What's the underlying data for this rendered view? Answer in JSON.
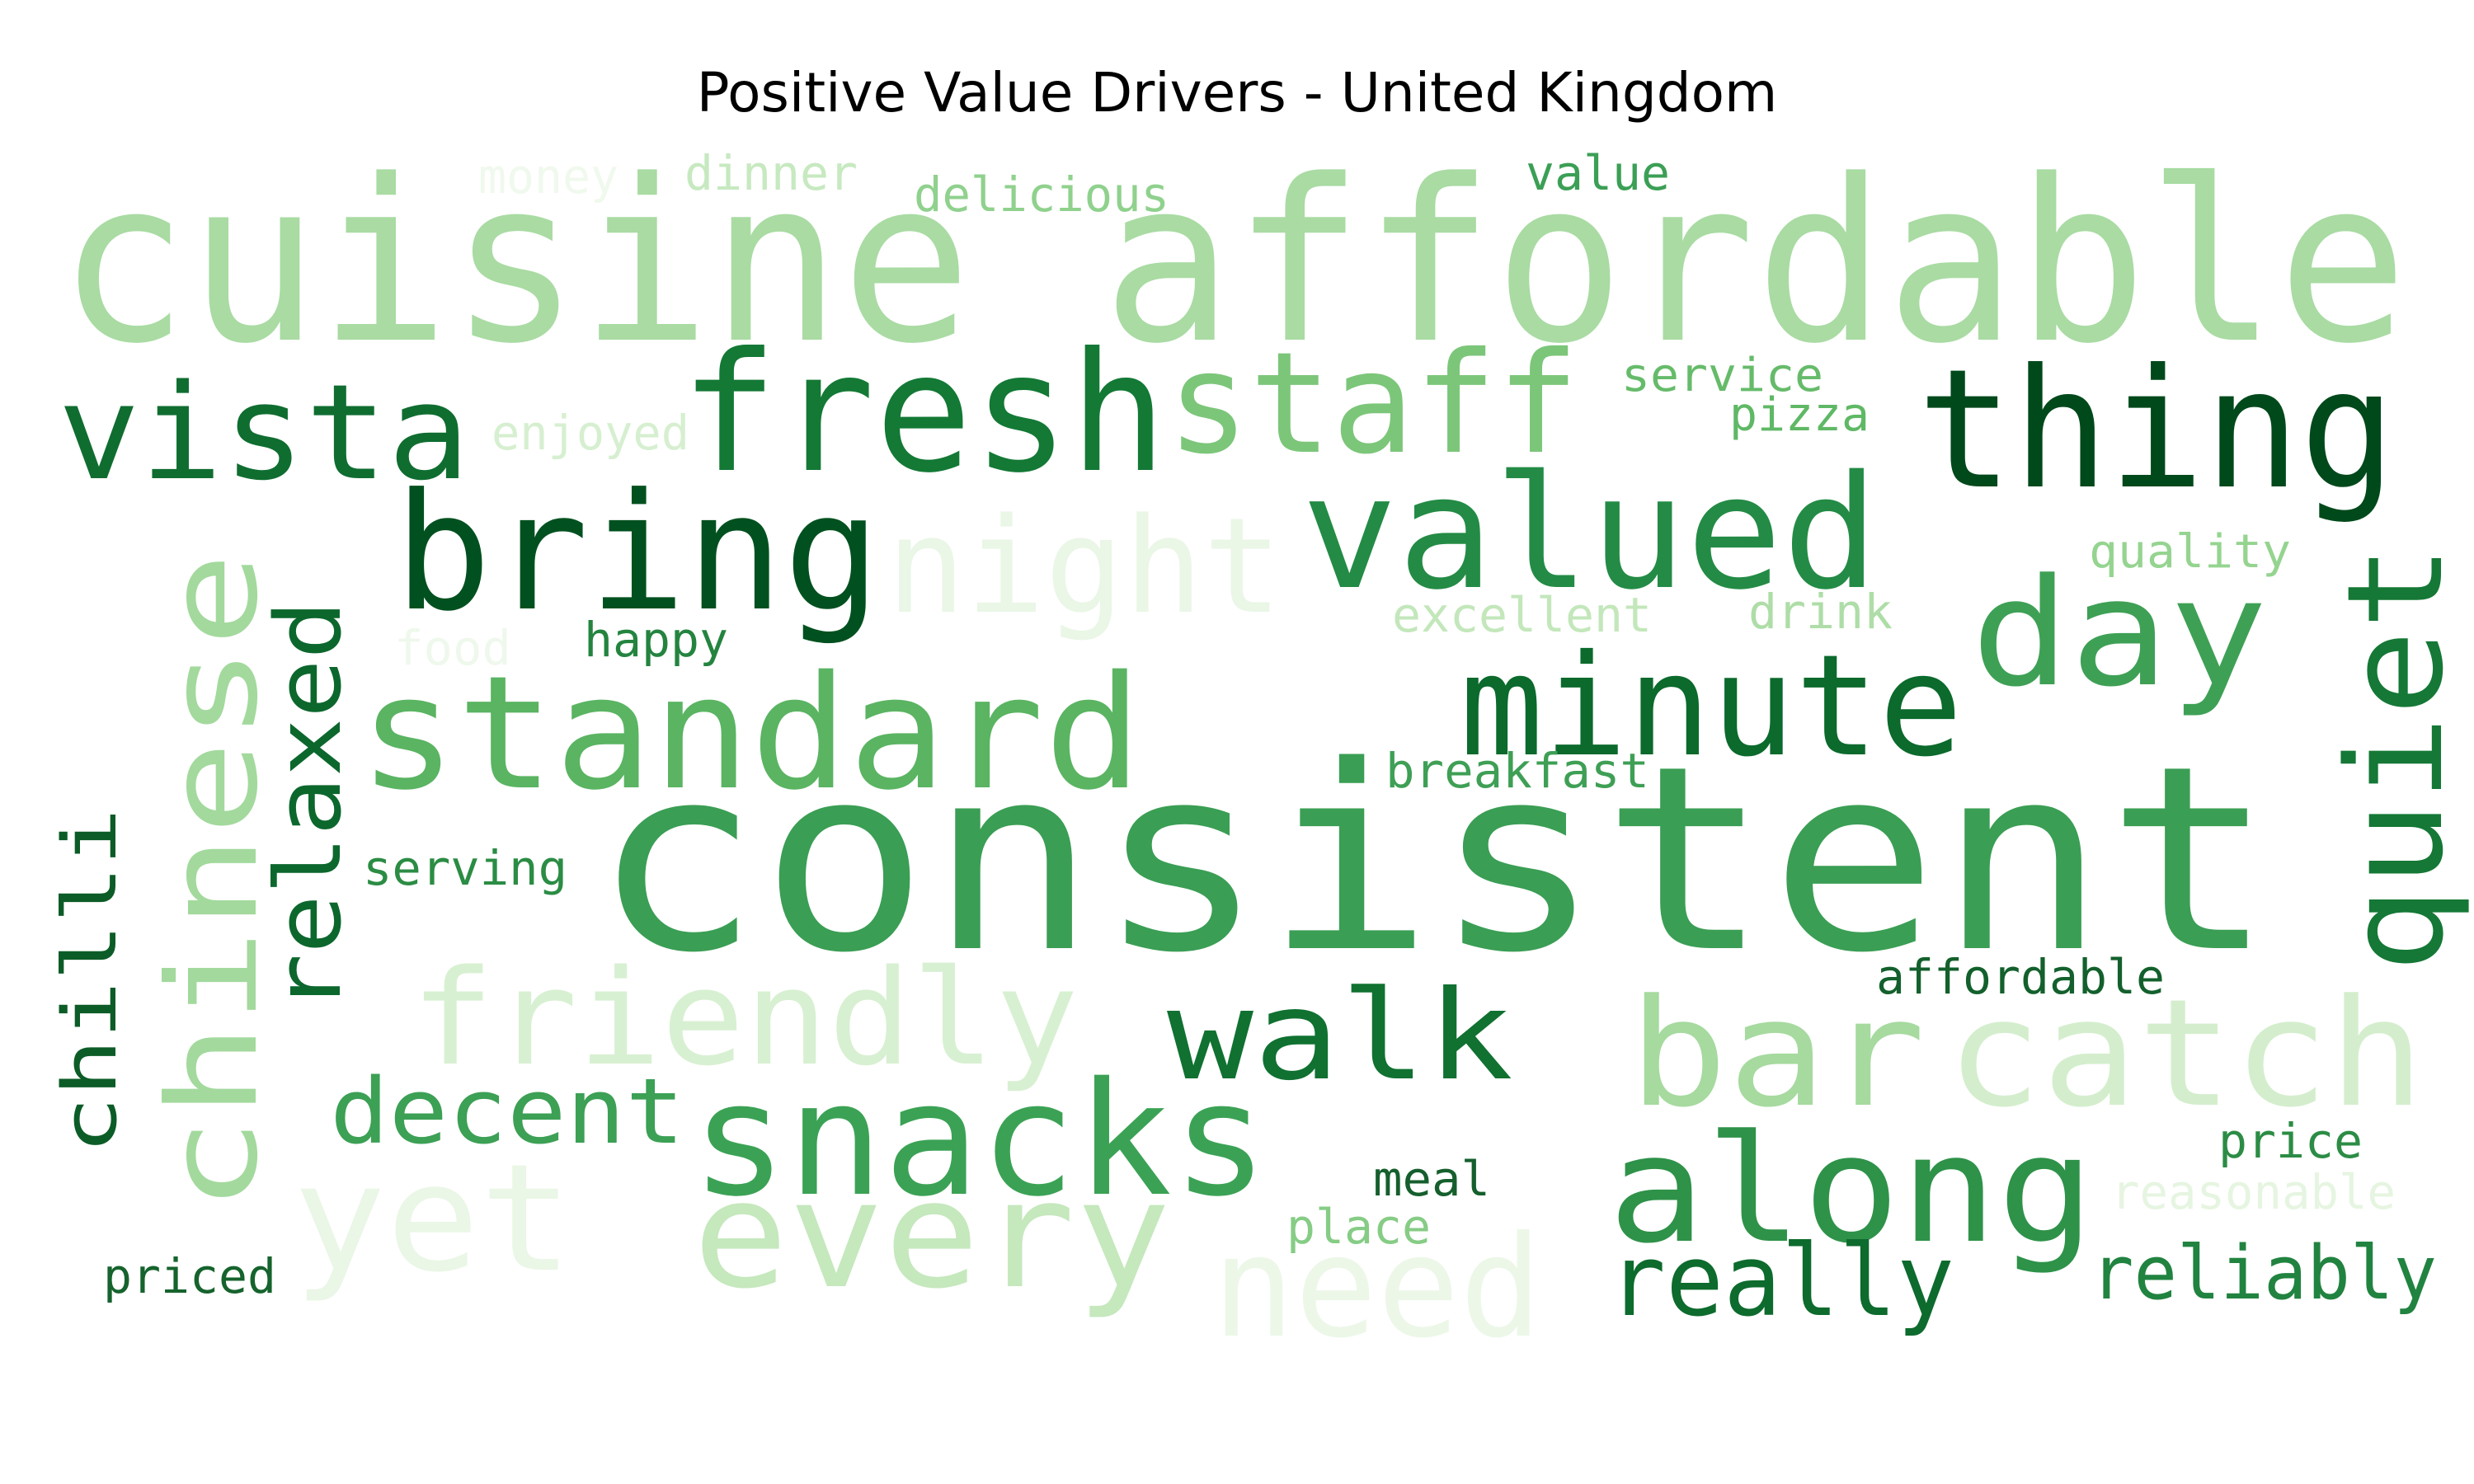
{
  "title": "Positive Value Drivers - United Kingdom",
  "words": [
    {
      "text": "cuisine affordable",
      "color": "#a9dba3"
    },
    {
      "text": "money",
      "color": "#f0f9ed"
    },
    {
      "text": "dinner",
      "color": "#c7e9c0"
    },
    {
      "text": "delicious",
      "color": "#8fd18d"
    },
    {
      "text": "value",
      "color": "#3b9f55"
    },
    {
      "text": "vista",
      "color": "#0f6d30"
    },
    {
      "text": "fresh",
      "color": "#137935"
    },
    {
      "text": "staff",
      "color": "#7cc67a"
    },
    {
      "text": "service",
      "color": "#66bb6a"
    },
    {
      "text": "pizza",
      "color": "#5fb865"
    },
    {
      "text": "thing",
      "color": "#00491b"
    },
    {
      "text": "enjoyed",
      "color": "#d6efd0"
    },
    {
      "text": "bring",
      "color": "#00511f"
    },
    {
      "text": "night",
      "color": "#eaf6e6"
    },
    {
      "text": "valued",
      "color": "#238b45"
    },
    {
      "text": "quality",
      "color": "#95d490"
    },
    {
      "text": "chinese",
      "color": "#a3d99d"
    },
    {
      "text": "relaxed",
      "color": "#0c672d"
    },
    {
      "text": "food",
      "color": "#eff8ec"
    },
    {
      "text": "happy",
      "color": "#24843f"
    },
    {
      "text": "excellent",
      "color": "#c3e7bb"
    },
    {
      "text": "drink",
      "color": "#aedda7"
    },
    {
      "text": "day",
      "color": "#3ea055"
    },
    {
      "text": "quiet",
      "color": "#157836"
    },
    {
      "text": "standard",
      "color": "#5ab462"
    },
    {
      "text": "minute",
      "color": "#0b6a2c"
    },
    {
      "text": "breakfast",
      "color": "#3e9f55"
    },
    {
      "text": "chilli",
      "color": "#0c5c27"
    },
    {
      "text": "serving",
      "color": "#2b8c44"
    },
    {
      "text": "consistent",
      "color": "#3a9e54"
    },
    {
      "text": "friendly",
      "color": "#d8f0d2"
    },
    {
      "text": "affordable",
      "color": "#13602c"
    },
    {
      "text": "walk",
      "color": "#107131"
    },
    {
      "text": "decent",
      "color": "#3ca055"
    },
    {
      "text": "bar",
      "color": "#a6da9f"
    },
    {
      "text": "catch",
      "color": "#d4eecd"
    },
    {
      "text": "snacks",
      "color": "#3ba255"
    },
    {
      "text": "price",
      "color": "#2c8c45"
    },
    {
      "text": "along",
      "color": "#2e9249"
    },
    {
      "text": "meal",
      "color": "#155f2d"
    },
    {
      "text": "yet",
      "color": "#eaf6e6"
    },
    {
      "text": "every",
      "color": "#c5e8bd"
    },
    {
      "text": "reasonable",
      "color": "#e6f5e1"
    },
    {
      "text": "place",
      "color": "#86cc85"
    },
    {
      "text": "need",
      "color": "#ecf7e8"
    },
    {
      "text": "really",
      "color": "#0d6b2d"
    },
    {
      "text": "reliably",
      "color": "#218340"
    },
    {
      "text": "priced",
      "color": "#16632d"
    }
  ]
}
